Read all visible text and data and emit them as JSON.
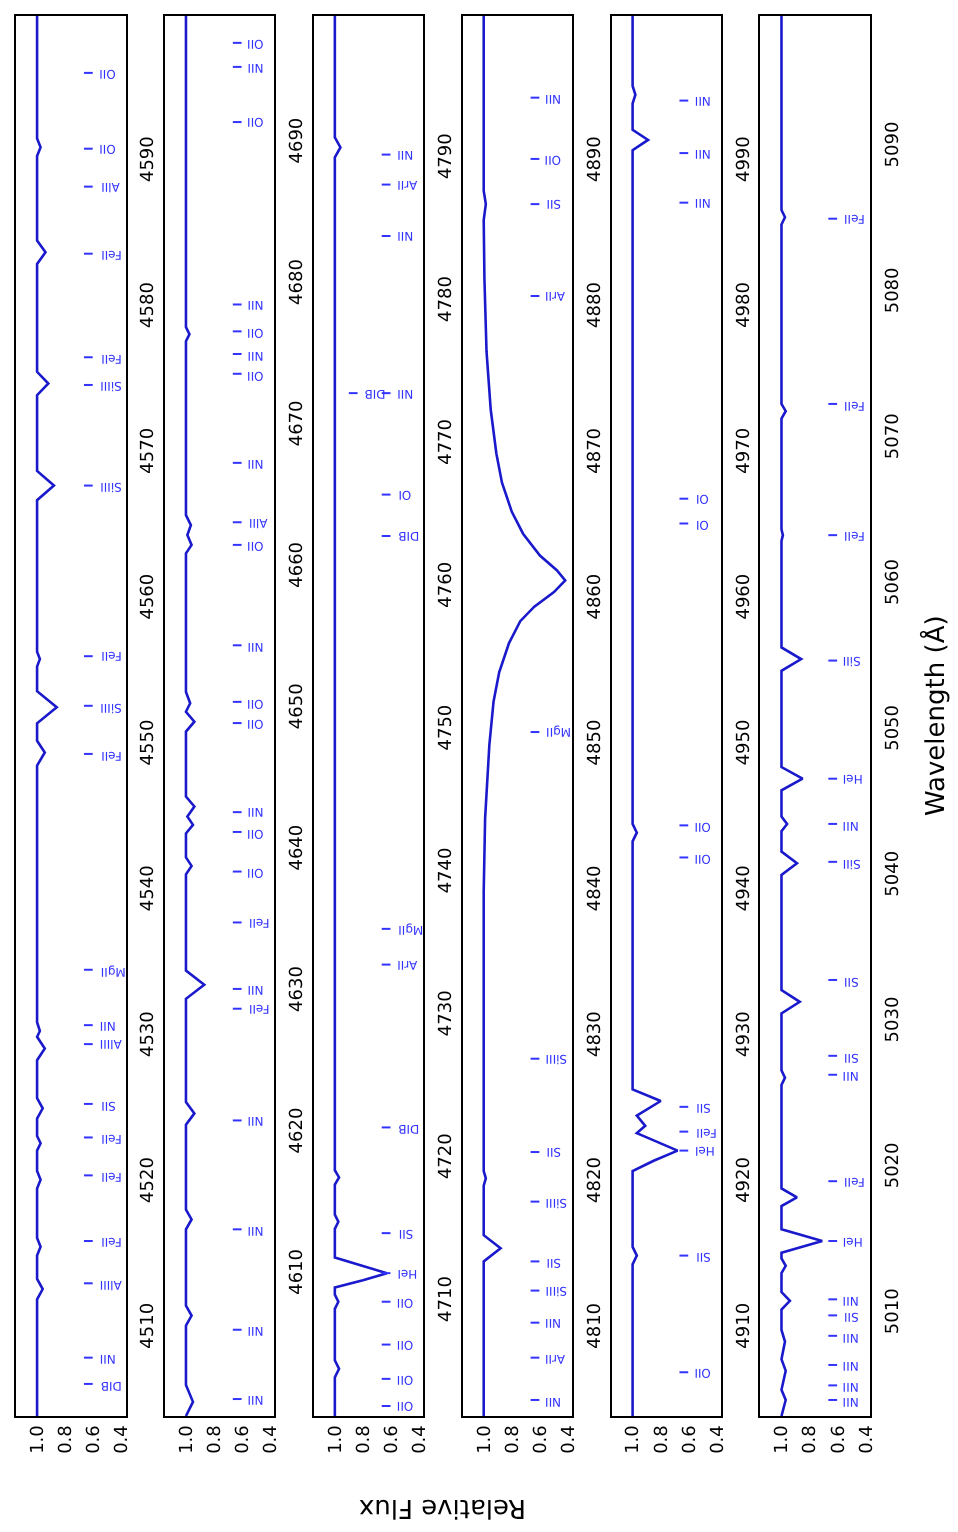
{
  "chart_data": [
    {
      "type": "line",
      "color": "#1a1acc",
      "ylim": [
        4504,
        4600
      ],
      "yticks": [
        4510,
        4520,
        4530,
        4540,
        4550,
        4560,
        4570,
        4580,
        4590
      ],
      "xlim": [
        1.15,
        0.37
      ],
      "xticks": [
        {
          "value": 1.0,
          "label": "1.0"
        },
        {
          "value": 0.8,
          "label": "0.8"
        },
        {
          "value": 0.6,
          "label": "0.6"
        },
        {
          "value": 0.4,
          "label": "0.4"
        }
      ],
      "values": [
        4504,
        4512.0,
        4512.7,
        4513.4,
        4515.0,
        4515.6,
        4516.2,
        4519.6,
        4520.2,
        4520.8,
        4522.2,
        4522.7,
        4523.2,
        4524.4,
        4525.1,
        4525.8,
        4528.4,
        4529.2,
        4530.0,
        4530.4,
        4531.0,
        4548.6,
        4549.5,
        4550.3,
        4551.5,
        4552.6,
        4553.7,
        4555.4,
        4555.9,
        4556.4,
        4566.8,
        4567.8,
        4568.8,
        4574.0,
        4574.8,
        4575.6,
        4583.0,
        4583.8,
        4584.6,
        4590.4,
        4591.0,
        4591.6,
        4600
      ],
      "x": [
        1.0,
        1.0,
        0.96,
        1.0,
        1.0,
        0.975,
        1.0,
        1.0,
        0.975,
        1.0,
        1.0,
        0.975,
        1.0,
        1.0,
        0.96,
        1.0,
        1.0,
        0.945,
        1.0,
        0.98,
        1.0,
        1.0,
        0.945,
        1.0,
        1.0,
        0.86,
        1.0,
        1.0,
        0.98,
        1.0,
        1.0,
        0.88,
        1.0,
        1.0,
        0.92,
        1.0,
        1.0,
        0.94,
        1.0,
        1.0,
        0.975,
        1.0,
        1.0
      ],
      "ref_lines": [
        {
          "axis": "y",
          "value": 4508.0,
          "label": "NII"
        },
        {
          "axis": "y",
          "value": 4506.2,
          "label": "DIB"
        },
        {
          "axis": "y",
          "value": 4513.1,
          "label": "AlIII"
        },
        {
          "axis": "y",
          "value": 4516.0,
          "label": "FeII"
        },
        {
          "axis": "y",
          "value": 4520.5,
          "label": "FeII"
        },
        {
          "axis": "y",
          "value": 4523.1,
          "label": "FeII"
        },
        {
          "axis": "y",
          "value": 4525.4,
          "label": "SII"
        },
        {
          "axis": "y",
          "value": 4529.5,
          "label": "AlIII"
        },
        {
          "axis": "y",
          "value": 4530.8,
          "label": "NII"
        },
        {
          "axis": "y",
          "value": 4534.6,
          "label": "MgII"
        },
        {
          "axis": "y",
          "value": 4549.4,
          "label": "FeII"
        },
        {
          "axis": "y",
          "value": 4552.7,
          "label": "SiIII"
        },
        {
          "axis": "y",
          "value": 4556.1,
          "label": "FeII"
        },
        {
          "axis": "y",
          "value": 4567.8,
          "label": "SiIII"
        },
        {
          "axis": "y",
          "value": 4574.7,
          "label": "SiIII"
        },
        {
          "axis": "y",
          "value": 4576.6,
          "label": "FeII"
        },
        {
          "axis": "y",
          "value": 4583.7,
          "label": "FeII"
        },
        {
          "axis": "y",
          "value": 4588.3,
          "label": "AlII"
        },
        {
          "axis": "y",
          "value": 4590.9,
          "label": "OII"
        },
        {
          "axis": "y",
          "value": 4596.1,
          "label": "OII"
        }
      ]
    },
    {
      "type": "line",
      "color": "#1a1acc",
      "ylim": [
        4600,
        4699
      ],
      "yticks": [
        4610,
        4620,
        4630,
        4640,
        4650,
        4660,
        4670,
        4680,
        4690
      ],
      "xlim": [
        1.15,
        0.37
      ],
      "xticks": [
        {
          "value": 1.0,
          "label": "1.0"
        },
        {
          "value": 0.8,
          "label": "0.8"
        },
        {
          "value": 0.6,
          "label": "0.6"
        },
        {
          "value": 0.4,
          "label": "0.4"
        }
      ],
      "values": [
        4600,
        4601.0,
        4602.2,
        4606.4,
        4607.1,
        4607.8,
        4613.2,
        4613.9,
        4614.6,
        4620.6,
        4621.4,
        4622.2,
        4629.5,
        4630.5,
        4631.5,
        4638.3,
        4638.9,
        4639.5,
        4641.2,
        4641.8,
        4642.4,
        4643.1,
        4643.8,
        4648.4,
        4649.1,
        4649.8,
        4650.4,
        4651.2,
        4661.0,
        4661.6,
        4662.3,
        4663.0,
        4663.7,
        4676.0,
        4676.5,
        4677.0,
        4699
      ],
      "x": [
        1.0,
        0.95,
        1.0,
        1.0,
        0.96,
        1.0,
        1.0,
        0.96,
        1.0,
        1.0,
        0.94,
        1.0,
        1.0,
        0.87,
        1.0,
        1.0,
        0.96,
        1.0,
        1.0,
        0.95,
        0.99,
        0.94,
        1.0,
        1.0,
        0.94,
        1.0,
        0.97,
        1.0,
        1.0,
        0.96,
        0.99,
        0.965,
        1.0,
        1.0,
        0.975,
        1.0,
        1.0
      ],
      "ref_lines": [
        {
          "axis": "y",
          "value": 4601.2,
          "label": "NII"
        },
        {
          "axis": "y",
          "value": 4606.1,
          "label": "NII"
        },
        {
          "axis": "y",
          "value": 4613.2,
          "label": "NII"
        },
        {
          "axis": "y",
          "value": 4620.9,
          "label": "NII"
        },
        {
          "axis": "y",
          "value": 4628.8,
          "label": "FeII"
        },
        {
          "axis": "y",
          "value": 4630.2,
          "label": "NII"
        },
        {
          "axis": "y",
          "value": 4634.9,
          "label": "FeII"
        },
        {
          "axis": "y",
          "value": 4638.5,
          "label": "OII"
        },
        {
          "axis": "y",
          "value": 4641.3,
          "label": "OII"
        },
        {
          "axis": "y",
          "value": 4642.7,
          "label": "NII"
        },
        {
          "axis": "y",
          "value": 4649.0,
          "label": "OII"
        },
        {
          "axis": "y",
          "value": 4650.5,
          "label": "OII"
        },
        {
          "axis": "y",
          "value": 4654.5,
          "label": "NII"
        },
        {
          "axis": "y",
          "value": 4661.6,
          "label": "OII"
        },
        {
          "axis": "y",
          "value": 4663.2,
          "label": "AlII"
        },
        {
          "axis": "y",
          "value": 4667.4,
          "label": "NII"
        },
        {
          "axis": "y",
          "value": 4673.7,
          "label": "OII"
        },
        {
          "axis": "y",
          "value": 4675.1,
          "label": "NII"
        },
        {
          "axis": "y",
          "value": 4676.7,
          "label": "OII"
        },
        {
          "axis": "y",
          "value": 4678.6,
          "label": "NII"
        },
        {
          "axis": "y",
          "value": 4691.5,
          "label": "OII"
        },
        {
          "axis": "y",
          "value": 4695.4,
          "label": "NII"
        },
        {
          "axis": "y",
          "value": 4697.1,
          "label": "OII"
        }
      ]
    },
    {
      "type": "line",
      "color": "#1a1acc",
      "xlabel": "Relative Flux",
      "ylim": [
        4702,
        4800
      ],
      "yticks": [
        4710,
        4720,
        4730,
        4740,
        4750,
        4760,
        4770,
        4780,
        4790
      ],
      "xlim": [
        1.15,
        0.37
      ],
      "xticks": [
        {
          "value": 1.0,
          "label": "1.0"
        },
        {
          "value": 0.8,
          "label": "0.8"
        },
        {
          "value": 0.6,
          "label": "0.6"
        },
        {
          "value": 0.4,
          "label": "0.4"
        }
      ],
      "values": [
        4702,
        4704.7,
        4705.3,
        4705.9,
        4709.5,
        4710.0,
        4710.5,
        4711.0,
        4711.5,
        4712.0,
        4712.5,
        4713.1,
        4715.1,
        4715.6,
        4716.1,
        4718.2,
        4718.7,
        4719.2,
        4790.1,
        4790.8,
        4791.5,
        4800
      ],
      "x": [
        1.0,
        1.0,
        0.97,
        1.0,
        1.0,
        0.975,
        1.0,
        1.0,
        0.8,
        0.63,
        0.8,
        1.0,
        1.0,
        0.975,
        1.0,
        1.0,
        0.97,
        1.0,
        1.0,
        0.96,
        1.0,
        1.0
      ],
      "ref_lines": [
        {
          "axis": "y",
          "value": 4702.7,
          "label": "OII"
        },
        {
          "axis": "y",
          "value": 4704.6,
          "label": "OII"
        },
        {
          "axis": "y",
          "value": 4707.0,
          "label": "OII"
        },
        {
          "axis": "y",
          "value": 4710.0,
          "label": "OII"
        },
        {
          "axis": "y",
          "value": 4712.0,
          "label": "HeI"
        },
        {
          "axis": "y",
          "value": 4714.8,
          "label": "SII"
        },
        {
          "axis": "y",
          "value": 4722.2,
          "label": "DIB"
        },
        {
          "axis": "y",
          "value": 4733.6,
          "label": "ArII"
        },
        {
          "axis": "y",
          "value": 4736.1,
          "label": "MgII"
        },
        {
          "axis": "y",
          "value": 4763.6,
          "label": "DIB"
        },
        {
          "axis": "y",
          "value": 4766.5,
          "label": "OI"
        },
        {
          "axis": "y",
          "value": 4773.6,
          "label": "NII"
        },
        {
          "axis": "y",
          "value": 4773.6,
          "label": "DIB"
        },
        {
          "axis": "y",
          "value": 4784.6,
          "label": "NII"
        },
        {
          "axis": "y",
          "value": 4788.2,
          "label": "ArII"
        },
        {
          "axis": "y",
          "value": 4790.3,
          "label": "NII"
        }
      ]
    },
    {
      "type": "line",
      "color": "#1a1acc",
      "ylim": [
        4804,
        4900
      ],
      "yticks": [
        4810,
        4820,
        4830,
        4840,
        4850,
        4860,
        4870,
        4880,
        4890
      ],
      "xlim": [
        1.15,
        0.37
      ],
      "xticks": [
        {
          "value": 1.0,
          "label": "1.0"
        },
        {
          "value": 0.8,
          "label": "0.8"
        },
        {
          "value": 0.6,
          "label": "0.6"
        },
        {
          "value": 0.4,
          "label": "0.4"
        }
      ],
      "values": [
        4804,
        4814.6,
        4815.5,
        4816.4,
        4819.8,
        4820.3,
        4820.8,
        4840,
        4845,
        4850,
        4853,
        4855,
        4857,
        4858.5,
        4859.5,
        4860.5,
        4861.3,
        4862.0,
        4863.0,
        4864.5,
        4866,
        4868,
        4870,
        4873,
        4877,
        4882,
        4886,
        4887.1,
        4888,
        4900
      ],
      "x": [
        1.0,
        1.0,
        0.88,
        1.0,
        1.0,
        0.985,
        1.0,
        1.0,
        0.99,
        0.96,
        0.93,
        0.89,
        0.82,
        0.74,
        0.64,
        0.5,
        0.42,
        0.48,
        0.6,
        0.72,
        0.8,
        0.87,
        0.91,
        0.95,
        0.98,
        0.995,
        1.0,
        0.985,
        1.0,
        1.0
      ],
      "ref_lines": [
        {
          "axis": "y",
          "value": 4805.1,
          "label": "NII"
        },
        {
          "axis": "y",
          "value": 4808.0,
          "label": "ArII"
        },
        {
          "axis": "y",
          "value": 4810.4,
          "label": "NII"
        },
        {
          "axis": "y",
          "value": 4812.6,
          "label": "SiIII"
        },
        {
          "axis": "y",
          "value": 4814.6,
          "label": "SII"
        },
        {
          "axis": "y",
          "value": 4818.7,
          "label": "SiIII"
        },
        {
          "axis": "y",
          "value": 4822.1,
          "label": "SII"
        },
        {
          "axis": "y",
          "value": 4828.5,
          "label": "SiIII"
        },
        {
          "axis": "y",
          "value": 4850.9,
          "label": "MgII"
        },
        {
          "axis": "y",
          "value": 4880.8,
          "label": "ArII"
        },
        {
          "axis": "y",
          "value": 4887.1,
          "label": "SII"
        },
        {
          "axis": "y",
          "value": 4890.2,
          "label": "OII"
        },
        {
          "axis": "y",
          "value": 4894.4,
          "label": "NII"
        }
      ]
    },
    {
      "type": "line",
      "color": "#1a1acc",
      "ylim": [
        4904,
        5000
      ],
      "yticks": [
        4910,
        4920,
        4930,
        4940,
        4950,
        4960,
        4970,
        4980,
        4990
      ],
      "xlim": [
        1.15,
        0.37
      ],
      "xticks": [
        {
          "value": 1.0,
          "label": "1.0"
        },
        {
          "value": 0.8,
          "label": "0.8"
        },
        {
          "value": 0.6,
          "label": "0.6"
        },
        {
          "value": 0.4,
          "label": "0.4"
        }
      ],
      "values": [
        4904,
        4914.4,
        4915.0,
        4915.6,
        4920.8,
        4921.5,
        4922.2,
        4922.9,
        4923.4,
        4923.9,
        4924.6,
        4925.6,
        4926.4,
        4943.4,
        4944.0,
        4944.6,
        4990.8,
        4991.5,
        4992.2,
        4994.0,
        4994.6,
        4995.2,
        5000
      ],
      "x": [
        1.0,
        1.0,
        0.97,
        1.0,
        1.0,
        0.85,
        0.68,
        0.85,
        0.97,
        0.91,
        0.97,
        0.8,
        1.0,
        1.0,
        0.97,
        1.0,
        1.0,
        0.89,
        1.0,
        1.0,
        0.98,
        1.0,
        1.0
      ],
      "ref_lines": [
        {
          "axis": "y",
          "value": 4907.0,
          "label": "OII"
        },
        {
          "axis": "y",
          "value": 4915.0,
          "label": "SII"
        },
        {
          "axis": "y",
          "value": 4922.2,
          "label": "HeI"
        },
        {
          "axis": "y",
          "value": 4923.5,
          "label": "FeII"
        },
        {
          "axis": "y",
          "value": 4925.2,
          "label": "SII"
        },
        {
          "axis": "y",
          "value": 4942.3,
          "label": "OII"
        },
        {
          "axis": "y",
          "value": 4944.5,
          "label": "OII"
        },
        {
          "axis": "y",
          "value": 4965.2,
          "label": "OI"
        },
        {
          "axis": "y",
          "value": 4966.9,
          "label": "OI"
        },
        {
          "axis": "y",
          "value": 4987.2,
          "label": "NII"
        },
        {
          "axis": "y",
          "value": 4990.6,
          "label": "NII"
        },
        {
          "axis": "y",
          "value": 4994.2,
          "label": "NII"
        }
      ]
    },
    {
      "type": "line",
      "color": "#1a1acc",
      "ylabel": "Wavelength (Å)",
      "ylim": [
        5003,
        5099
      ],
      "yticks": [
        5010,
        5020,
        5030,
        5040,
        5050,
        5060,
        5070,
        5080,
        5090
      ],
      "xlim": [
        1.15,
        0.37
      ],
      "xticks": [
        {
          "value": 1.0,
          "label": "1.0"
        },
        {
          "value": 0.8,
          "label": "0.8"
        },
        {
          "value": 0.6,
          "label": "0.6"
        },
        {
          "value": 0.4,
          "label": "0.4"
        }
      ],
      "values": [
        5003,
        5004.1,
        5004.8,
        5006.1,
        5006.9,
        5008.1,
        5008.9,
        5010.3,
        5010.9,
        5011.5,
        5012.8,
        5013.3,
        5013.8,
        5014.2,
        5015.0,
        5015.8,
        5017.4,
        5018.0,
        5018.6,
        5025.7,
        5026.2,
        5026.7,
        5030.6,
        5031.4,
        5032.2,
        5040.1,
        5040.9,
        5041.7,
        5043.1,
        5043.6,
        5044.1,
        5045.9,
        5046.7,
        5047.5,
        5054.1,
        5054.9,
        5055.7,
        5063.0,
        5063.4,
        5063.8,
        5071.4,
        5071.9,
        5072.4,
        5084.7,
        5085.2,
        5085.7,
        5099
      ],
      "x": [
        1.0,
        0.97,
        1.0,
        0.97,
        1.0,
        0.975,
        1.0,
        1.0,
        0.94,
        1.0,
        1.0,
        0.97,
        1.0,
        1.0,
        0.71,
        1.0,
        1.0,
        0.89,
        1.0,
        1.0,
        0.975,
        1.0,
        1.0,
        0.87,
        1.0,
        1.0,
        0.89,
        1.0,
        1.0,
        0.96,
        1.0,
        1.0,
        0.85,
        1.0,
        1.0,
        0.86,
        1.0,
        1.0,
        0.99,
        1.0,
        1.0,
        0.97,
        1.0,
        1.0,
        0.975,
        1.0,
        1.0
      ],
      "ref_lines": [
        {
          "axis": "y",
          "value": 5004.1,
          "label": "NII"
        },
        {
          "axis": "y",
          "value": 5005.1,
          "label": "NII"
        },
        {
          "axis": "y",
          "value": 5006.5,
          "label": "NII"
        },
        {
          "axis": "y",
          "value": 5008.5,
          "label": "NII"
        },
        {
          "axis": "y",
          "value": 5009.9,
          "label": "SII"
        },
        {
          "axis": "y",
          "value": 5011.0,
          "label": "NII"
        },
        {
          "axis": "y",
          "value": 5015.0,
          "label": "HeI"
        },
        {
          "axis": "y",
          "value": 5019.1,
          "label": "FeII"
        },
        {
          "axis": "y",
          "value": 5026.4,
          "label": "NII"
        },
        {
          "axis": "y",
          "value": 5027.7,
          "label": "SII"
        },
        {
          "axis": "y",
          "value": 5032.9,
          "label": "SII"
        },
        {
          "axis": "y",
          "value": 5041.0,
          "label": "SiII"
        },
        {
          "axis": "y",
          "value": 5043.6,
          "label": "NII"
        },
        {
          "axis": "y",
          "value": 5046.7,
          "label": "HeI"
        },
        {
          "axis": "y",
          "value": 5054.8,
          "label": "SiII"
        },
        {
          "axis": "y",
          "value": 5063.4,
          "label": "FeII"
        },
        {
          "axis": "y",
          "value": 5072.4,
          "label": "FeII"
        },
        {
          "axis": "y",
          "value": 5085.1,
          "label": "FeII"
        }
      ]
    }
  ]
}
